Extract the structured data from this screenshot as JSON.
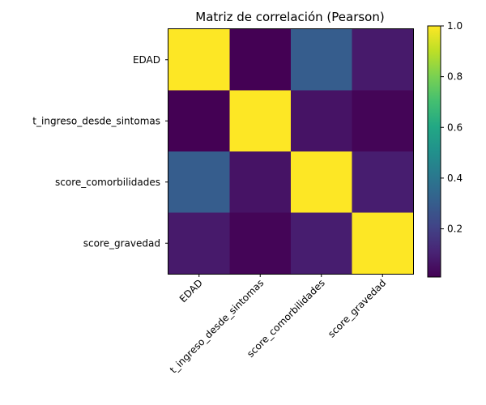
{
  "chart_data": {
    "type": "heatmap",
    "title": "Matriz de correlación (Pearson)",
    "xlabel": "",
    "ylabel": "",
    "rows": [
      "EDAD",
      "t_ingreso_desde_sintomas",
      "score_comorbilidades",
      "score_gravedad"
    ],
    "columns": [
      "EDAD",
      "t_ingreso_desde_sintomas",
      "score_comorbilidades",
      "score_gravedad"
    ],
    "values": [
      [
        1.0,
        0.01,
        0.3,
        0.08
      ],
      [
        0.01,
        1.0,
        0.06,
        0.02
      ],
      [
        0.3,
        0.06,
        1.0,
        0.09
      ],
      [
        0.08,
        0.02,
        0.09,
        1.0
      ]
    ],
    "colormap": "viridis",
    "colorbar": {
      "range": [
        0.01,
        1.0
      ],
      "ticks": [
        0.2,
        0.4,
        0.6,
        0.8,
        1.0
      ],
      "tick_labels": [
        "0.2",
        "0.4",
        "0.6",
        "0.8",
        "1.0"
      ]
    },
    "grid": false
  }
}
